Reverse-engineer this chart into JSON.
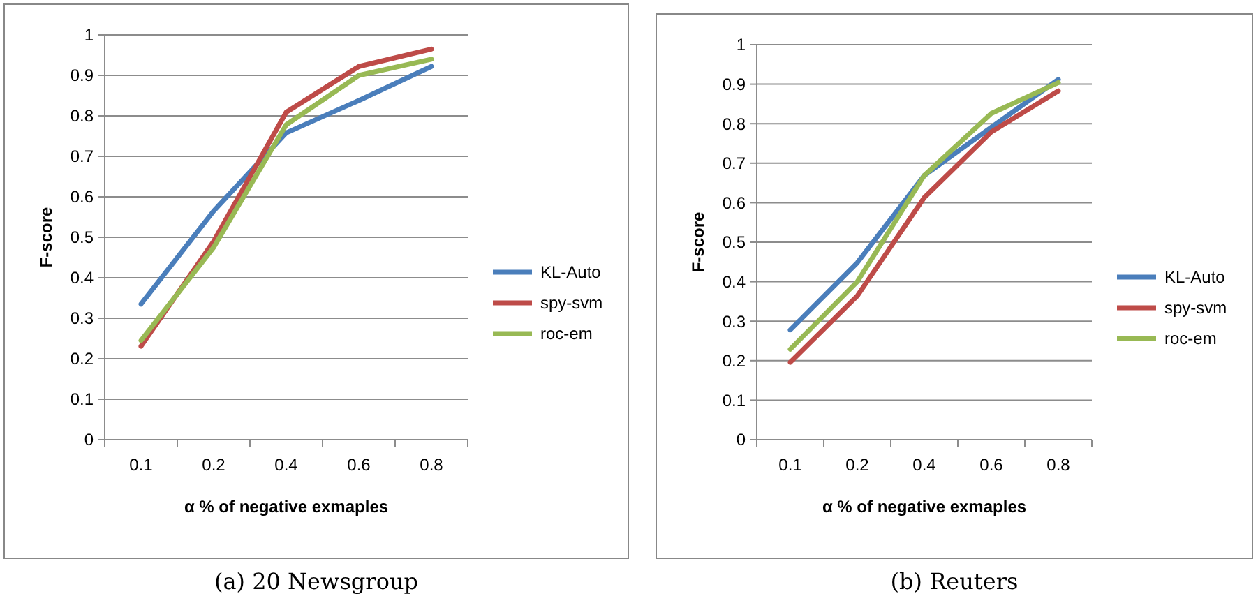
{
  "chart_data": [
    {
      "type": "line",
      "xlabel": "α % of negative exmaples",
      "ylabel": "F-score",
      "categories": [
        "0.1",
        "0.2",
        "0.4",
        "0.6",
        "0.8"
      ],
      "series": [
        {
          "name": "KL-Auto",
          "color": "#4a7ebb",
          "values": [
            0.335,
            0.565,
            0.758,
            0.838,
            0.922
          ]
        },
        {
          "name": "spy-svm",
          "color": "#be4b48",
          "values": [
            0.231,
            0.49,
            0.809,
            0.922,
            0.965
          ]
        },
        {
          "name": "roc-em",
          "color": "#98b954",
          "values": [
            0.245,
            0.475,
            0.778,
            0.9,
            0.94
          ]
        }
      ],
      "ylim": [
        0,
        1
      ],
      "yticks": [
        0,
        0.1,
        0.2,
        0.3,
        0.4,
        0.5,
        0.6,
        0.7,
        0.8,
        0.9,
        1
      ],
      "grid": "y",
      "legend": "right",
      "annotations": [
        "(a) 20 Newsgroup"
      ]
    },
    {
      "type": "line",
      "xlabel": "α % of negative exmaples",
      "ylabel": "F-score",
      "categories": [
        "0.1",
        "0.2",
        "0.4",
        "0.6",
        "0.8"
      ],
      "series": [
        {
          "name": "KL-Auto",
          "color": "#4a7ebb",
          "values": [
            0.278,
            0.448,
            0.669,
            0.791,
            0.912
          ]
        },
        {
          "name": "spy-svm",
          "color": "#be4b48",
          "values": [
            0.196,
            0.364,
            0.613,
            0.779,
            0.883
          ]
        },
        {
          "name": "roc-em",
          "color": "#98b954",
          "values": [
            0.229,
            0.4,
            0.669,
            0.826,
            0.904
          ]
        }
      ],
      "ylim": [
        0,
        1
      ],
      "yticks": [
        0,
        0.1,
        0.2,
        0.3,
        0.4,
        0.5,
        0.6,
        0.7,
        0.8,
        0.9,
        1
      ],
      "grid": "y",
      "legend": "right",
      "annotations": [
        "(b) Reuters"
      ]
    }
  ]
}
